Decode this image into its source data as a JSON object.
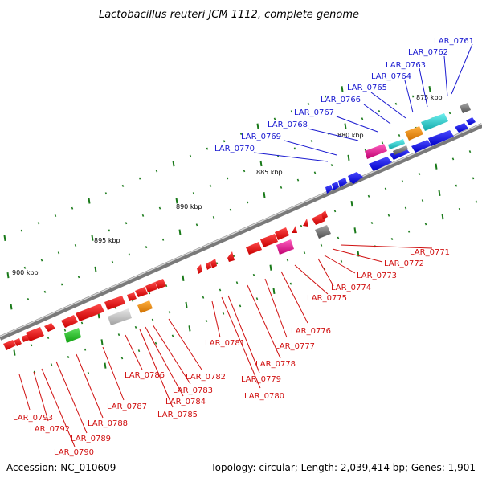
{
  "title": "Lactobacillus reuteri JCM 1112, complete genome",
  "kbp_labels": [
    "875 kbp",
    "880 kbp",
    "885 kbp",
    "890 kbp",
    "895 kbp",
    "900 kbp"
  ],
  "genes_top": [
    "LAR_0761",
    "LAR_0762",
    "LAR_0763",
    "LAR_0764",
    "LAR_0765",
    "LAR_0766",
    "LAR_0767",
    "LAR_0768",
    "LAR_0769",
    "LAR_0770"
  ],
  "genes_bottom": [
    "LAR_0771",
    "LAR_0772",
    "LAR_0773",
    "LAR_0774",
    "LAR_0775",
    "LAR_0776",
    "LAR_0777",
    "LAR_0778",
    "LAR_0779",
    "LAR_0780",
    "LAR_0781",
    "LAR_0782",
    "LAR_0783",
    "LAR_0784",
    "LAR_0785",
    "LAR_0786",
    "LAR_0787",
    "LAR_0788",
    "LAR_0789",
    "LAR_0790",
    "LAR_0792",
    "LAR_0793"
  ],
  "footer": {
    "accession": "Accession: NC_010609",
    "topology": "Topology: circular; Length: 2,039,414 bp; Genes: 1,901"
  },
  "colors": {
    "forward_strand": "#1010e0",
    "reverse_strand": "#e01010",
    "label_top": "#1a1ad0",
    "label_bottom": "#d01010",
    "tick": "#1a7a1a",
    "backbone": "#7a7a7a"
  }
}
